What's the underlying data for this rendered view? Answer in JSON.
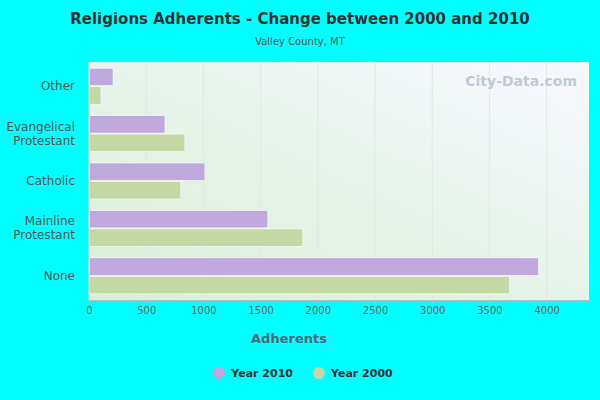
{
  "chart_data": {
    "type": "bar",
    "orientation": "horizontal",
    "title": "Religions Adherents - Change between 2000 and 2010",
    "subtitle": "Valley County, MT",
    "xlabel": "Adherents",
    "categories": [
      "Other",
      "Evangelical Protestant",
      "Catholic",
      "Mainline Protestant",
      "None"
    ],
    "series": [
      {
        "name": "Year 2010",
        "color": "#c0a8dc",
        "values": [
          210,
          664,
          1013,
          1563,
          3930
        ]
      },
      {
        "name": "Year 2000",
        "color": "#c4d8a4",
        "values": [
          105,
          838,
          803,
          1869,
          3677
        ]
      }
    ],
    "xlim": [
      0,
      4370
    ],
    "xticks": [
      0,
      500,
      1000,
      1500,
      2000,
      2500,
      3000,
      3500,
      4000
    ],
    "grid": true,
    "legend": "bottom",
    "annotations": [
      "City-Data.com"
    ]
  }
}
